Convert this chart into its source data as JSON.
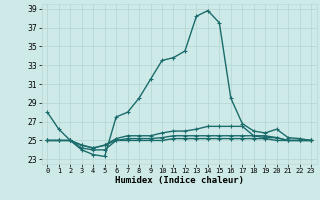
{
  "xlabel": "Humidex (Indice chaleur)",
  "background_color": "#ceeae8",
  "grid_color": "#b8d8d6",
  "line_color": "#1a6b6b",
  "xlim": [
    -0.5,
    23.5
  ],
  "ylim": [
    22.5,
    39.5
  ],
  "yticks": [
    23,
    25,
    27,
    29,
    31,
    33,
    35,
    37,
    39
  ],
  "xticks": [
    0,
    1,
    2,
    3,
    4,
    5,
    6,
    7,
    8,
    9,
    10,
    11,
    12,
    13,
    14,
    15,
    16,
    17,
    18,
    19,
    20,
    21,
    22,
    23
  ],
  "series": [
    [
      28.0,
      26.2,
      25.0,
      24.0,
      23.5,
      23.3,
      27.5,
      28.0,
      29.5,
      31.5,
      33.5,
      33.8,
      34.5,
      38.2,
      38.8,
      37.5,
      29.5,
      26.8,
      26.0,
      25.8,
      26.2,
      25.3,
      25.2,
      25.0
    ],
    [
      25.0,
      25.0,
      25.0,
      24.5,
      24.2,
      24.5,
      25.2,
      25.5,
      25.5,
      25.5,
      25.8,
      26.0,
      26.0,
      26.2,
      26.5,
      26.5,
      26.5,
      26.5,
      25.5,
      25.3,
      25.3,
      25.0,
      25.0,
      25.0
    ],
    [
      25.0,
      25.0,
      25.0,
      24.5,
      24.2,
      24.5,
      25.0,
      25.2,
      25.2,
      25.2,
      25.3,
      25.5,
      25.5,
      25.5,
      25.5,
      25.5,
      25.5,
      25.5,
      25.5,
      25.5,
      25.3,
      25.0,
      25.0,
      25.0
    ],
    [
      25.0,
      25.0,
      25.0,
      24.2,
      24.0,
      24.0,
      25.0,
      25.0,
      25.0,
      25.0,
      25.0,
      25.2,
      25.2,
      25.2,
      25.2,
      25.2,
      25.2,
      25.2,
      25.2,
      25.2,
      25.0,
      25.0,
      25.0,
      25.0
    ]
  ],
  "marker": "+",
  "markersize": 3,
  "linewidth": 1.0
}
